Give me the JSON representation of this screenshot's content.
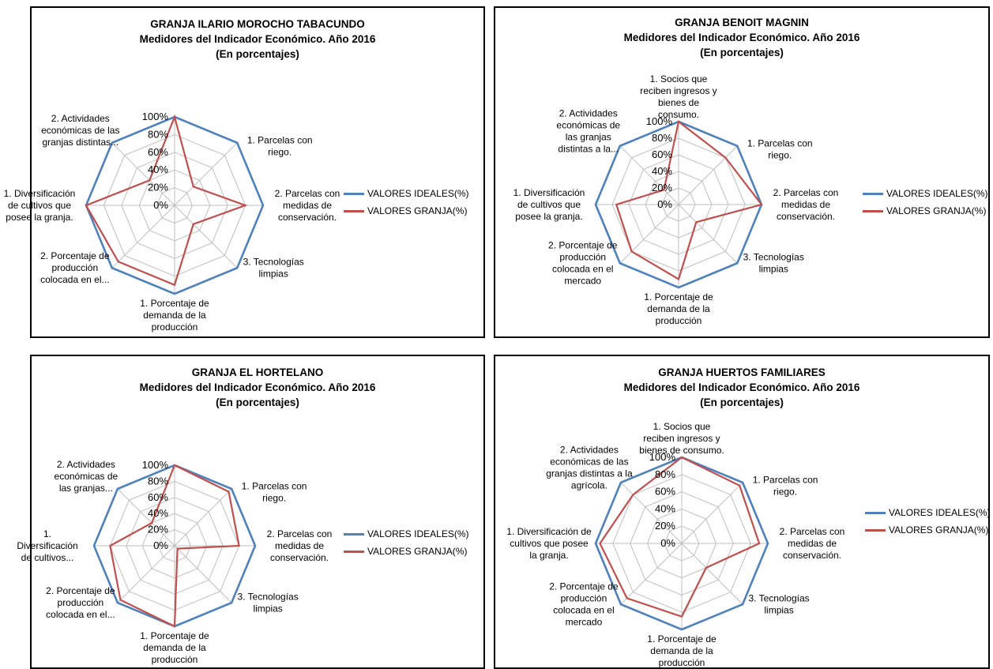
{
  "colors": {
    "ideal": "#4f81bd",
    "farm": "#c0504d",
    "grid": "#bfbfbf"
  },
  "chart_data": [
    {
      "type": "radar",
      "title": "GRANJA ILARIO MOROCHO TABACUNDO",
      "subtitle": "Medidores del Indicador Económico. Año  2016",
      "subtitle2": "(En porcentajes)",
      "ticks": [
        "0%",
        "20%",
        "40%",
        "60%",
        "80%",
        "100%"
      ],
      "categories": [
        [],
        [
          "1. Parcelas con",
          "riego."
        ],
        [
          "2. Parcelas con",
          "medidas de",
          "conservación."
        ],
        [
          "3. Tecnologías",
          "limpias"
        ],
        [
          "1. Porcentaje de",
          "demanda de la",
          "producción"
        ],
        [
          "2. Porcentaje de",
          "producción",
          "colocada en el..."
        ],
        [
          "1. Diversificación",
          "de cultivos que",
          "posee la granja."
        ],
        [
          "2. Actividades",
          "económicas de las",
          "granjas distintas..."
        ]
      ],
      "series": [
        {
          "name": "VALORES IDEALES(%)",
          "values": [
            100,
            100,
            100,
            100,
            100,
            100,
            100,
            100
          ]
        },
        {
          "name": "VALORES GRANJA(%)",
          "values": [
            100,
            30,
            80,
            30,
            90,
            90,
            100,
            40
          ]
        }
      ],
      "ylim": [
        0,
        100
      ]
    },
    {
      "type": "radar",
      "title": "GRANJA BENOIT MAGNIN",
      "subtitle": "Medidores del Indicador Económico. Año  2016",
      "subtitle2": "(En porcentajes)",
      "ticks": [
        "0%",
        "20%",
        "40%",
        "60%",
        "80%",
        "100%"
      ],
      "categories": [
        [
          "1. Socios que",
          "reciben ingresos y",
          "bienes de",
          "consumo."
        ],
        [
          "1. Parcelas con",
          "riego."
        ],
        [
          "2. Parcelas con",
          "medidas de",
          "conservación."
        ],
        [
          "3. Tecnologías",
          "limpias"
        ],
        [
          "1. Porcentaje de",
          "demanda de la",
          "producción"
        ],
        [
          "2. Porcentaje de",
          "producción",
          "colocada en el",
          "mercado"
        ],
        [
          "1. Diversificación",
          "de cultivos que",
          "posee la granja."
        ],
        [
          "2. Actividades",
          "económicas de",
          "las granjas",
          "distintas a la..."
        ]
      ],
      "series": [
        {
          "name": "VALORES IDEALES(%)",
          "values": [
            100,
            100,
            100,
            100,
            100,
            100,
            100,
            100
          ]
        },
        {
          "name": "VALORES GRANJA(%)",
          "values": [
            100,
            80,
            100,
            30,
            90,
            80,
            75,
            25
          ]
        }
      ],
      "ylim": [
        0,
        100
      ]
    },
    {
      "type": "radar",
      "title": "GRANJA EL HORTELANO",
      "subtitle": "Medidores del Indicador Económico. Año  2016",
      "subtitle2": "(En porcentajes)",
      "ticks": [
        "0%",
        "20%",
        "40%",
        "60%",
        "80%",
        "100%"
      ],
      "categories": [
        [],
        [
          "1. Parcelas con",
          "riego."
        ],
        [
          "2. Parcelas con",
          "medidas de",
          "conservación."
        ],
        [
          "3. Tecnologías",
          "limpias"
        ],
        [
          "1. Porcentaje de",
          "demanda de la",
          "producción"
        ],
        [
          "2. Porcentaje de",
          "producción",
          "colocada en el..."
        ],
        [
          "1.",
          "Diversificación",
          "de cultivos..."
        ],
        [
          "2. Actividades",
          "económicas de",
          "las granjas..."
        ]
      ],
      "series": [
        {
          "name": "VALORES IDEALES(%)",
          "values": [
            100,
            100,
            100,
            100,
            100,
            100,
            100,
            100
          ]
        },
        {
          "name": "VALORES GRANJA(%)",
          "values": [
            100,
            95,
            80,
            5,
            100,
            95,
            80,
            40
          ]
        }
      ],
      "ylim": [
        0,
        100
      ]
    },
    {
      "type": "radar",
      "title": "GRANJA HUERTOS FAMILIARES",
      "subtitle": "Medidores del Indicador Económico. Año  2016",
      "subtitle2": "(En porcentajes)",
      "ticks": [
        "0%",
        "20%",
        "40%",
        "60%",
        "80%",
        "100%"
      ],
      "categories": [
        [
          "1. Socios que",
          "reciben ingresos y",
          "bienes de consumo."
        ],
        [
          "1. Parcelas con",
          "riego."
        ],
        [
          "2. Parcelas con",
          "medidas de",
          "conservación."
        ],
        [
          "3. Tecnologías",
          "limpias"
        ],
        [
          "1. Porcentaje de",
          "demanda de la",
          "producción"
        ],
        [
          "2. Porcentaje de",
          "producción",
          "colocada en el",
          "mercado"
        ],
        [
          "1. Diversificación de",
          "cultivos que posee",
          "la granja."
        ],
        [
          "2. Actividades",
          "económicas de las",
          "granjas distintas a la",
          "agrícola."
        ]
      ],
      "series": [
        {
          "name": "VALORES IDEALES(%)",
          "values": [
            100,
            100,
            100,
            100,
            100,
            100,
            100,
            100
          ]
        },
        {
          "name": "VALORES GRANJA(%)",
          "values": [
            100,
            95,
            90,
            40,
            85,
            90,
            95,
            80
          ]
        }
      ],
      "ylim": [
        0,
        100
      ]
    }
  ]
}
